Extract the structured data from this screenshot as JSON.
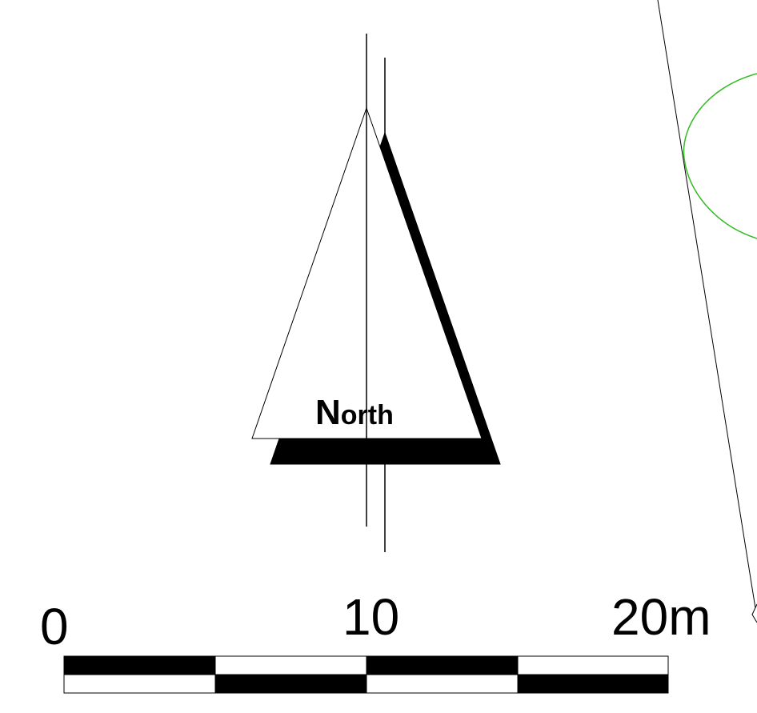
{
  "north_arrow": {
    "label_initial": "N",
    "label_rest": "orth"
  },
  "scale_bar": {
    "labels": {
      "start": "0",
      "middle": "10",
      "end": "20m"
    },
    "segments": 4,
    "colors": {
      "dark": "#000000",
      "light": "#ffffff"
    }
  },
  "map_features": {
    "boundary_line_color": "#000000",
    "polygon_outline_color": "#33bb22"
  }
}
